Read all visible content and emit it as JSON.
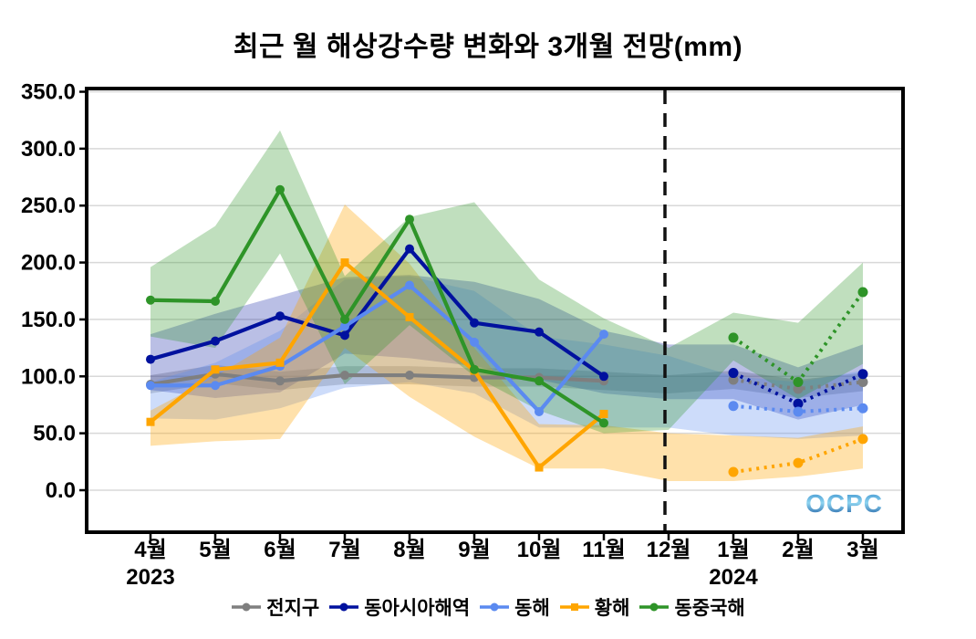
{
  "chart_data": {
    "type": "line",
    "title": "최근 월 해상강수량 변화와 3개월 전망(mm)",
    "watermark": "OCPC",
    "x_categories": [
      "4월",
      "5월",
      "6월",
      "7월",
      "8월",
      "9월",
      "10월",
      "11월",
      "12월",
      "1월",
      "2월",
      "3월"
    ],
    "x_year_labels": [
      {
        "index": 0,
        "label": "2023"
      },
      {
        "index": 9,
        "label": "2024"
      }
    ],
    "yticks": [
      0,
      50,
      100,
      150,
      200,
      250,
      300,
      350
    ],
    "ytick_labels": [
      "0.0",
      "50.0",
      "100.0",
      "150.0",
      "200.0",
      "250.0",
      "300.0",
      "350.0"
    ],
    "ylim": [
      -37,
      350
    ],
    "grid": "horizontal",
    "divider": {
      "index": 8,
      "style": "dashed",
      "color": "#111111"
    },
    "forecast_start_index": 9,
    "legend_position": "bottom",
    "series": [
      {
        "key": "global",
        "name": "전지구",
        "color": "#7f7f7f",
        "marker": "circle",
        "band_opacity": 0.35,
        "values": [
          93,
          102,
          96,
          101,
          101,
          99,
          99,
          96,
          null,
          97,
          89,
          95
        ],
        "band_lower": [
          85,
          94,
          88,
          93,
          93,
          91,
          91,
          88,
          85,
          89,
          81,
          87
        ],
        "band_upper": [
          101,
          110,
          104,
          109,
          109,
          107,
          107,
          104,
          101,
          105,
          97,
          103
        ]
      },
      {
        "key": "east-asia-seas",
        "name": "동아시아해역",
        "color": "#00119e",
        "marker": "circle",
        "band_opacity": 0.27,
        "values": [
          115,
          131,
          153,
          136,
          212,
          147,
          139,
          100,
          null,
          103,
          76,
          102
        ],
        "band_lower": [
          88,
          81,
          86,
          120,
          116,
          109,
          97,
          85,
          80,
          80,
          62,
          75
        ],
        "band_upper": [
          137,
          155,
          171,
          187,
          189,
          183,
          168,
          140,
          128,
          128,
          108,
          128
        ]
      },
      {
        "key": "east-sea",
        "name": "동해",
        "color": "#5b8af0",
        "marker": "circle",
        "band_opacity": 0.3,
        "values": [
          92,
          92,
          109,
          144,
          180,
          130,
          69,
          137,
          null,
          74,
          69,
          72
        ],
        "band_lower": [
          63,
          62,
          72,
          90,
          95,
          85,
          55,
          55,
          55,
          48,
          45,
          48
        ],
        "band_upper": [
          95,
          112,
          140,
          185,
          188,
          175,
          135,
          128,
          118,
          100,
          95,
          105
        ]
      },
      {
        "key": "yellow-sea",
        "name": "황해",
        "color": "#ffa500",
        "marker": "square",
        "band_opacity": 0.33,
        "values": [
          60,
          106,
          112,
          200,
          152,
          105,
          20,
          67,
          null,
          16,
          24,
          45
        ],
        "band_lower": [
          39,
          43,
          45,
          125,
          82,
          47,
          19,
          19,
          8,
          8,
          12,
          19
        ],
        "band_upper": [
          70,
          100,
          134,
          251,
          199,
          125,
          58,
          57,
          50,
          48,
          46,
          56
        ]
      },
      {
        "key": "east-china-sea",
        "name": "동중국해",
        "color": "#2e9428",
        "marker": "circle",
        "band_opacity": 0.3,
        "values": [
          167,
          166,
          264,
          150,
          238,
          106,
          96,
          59,
          null,
          134,
          95,
          174
        ],
        "band_lower": [
          135,
          125,
          208,
          93,
          145,
          100,
          70,
          50,
          53,
          114,
          80,
          111
        ],
        "band_upper": [
          196,
          232,
          316,
          188,
          240,
          253,
          185,
          151,
          125,
          156,
          147,
          200
        ]
      }
    ]
  }
}
